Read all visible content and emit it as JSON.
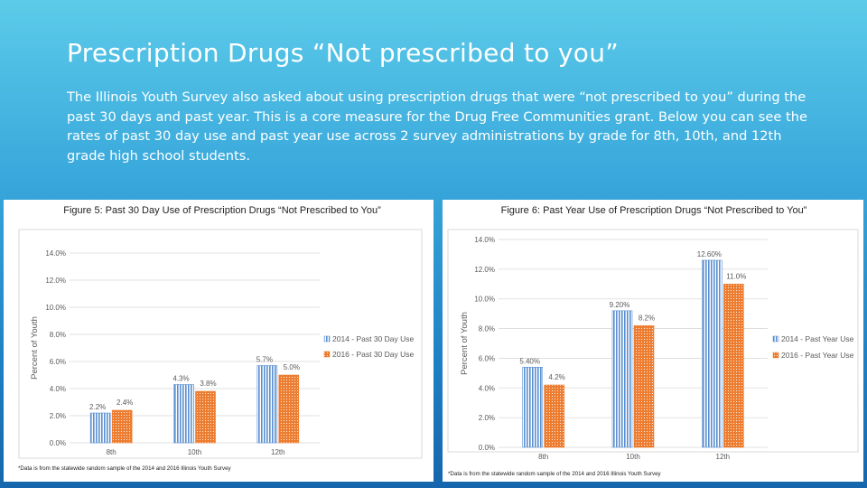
{
  "slide": {
    "title": "Prescription Drugs “Not prescribed to you”",
    "body": "The Illinois Youth Survey also asked about using prescription drugs that were “not prescribed to you” during the past 30 days and past year. This is a core measure for the Drug Free Communities grant. Below you can see the rates of past 30 day use and past year use across 2 survey administrations by grade for 8th, 10th, and 12th grade high school students."
  },
  "colors": {
    "series_2014": "#5b8fd0",
    "series_2016": "#ed7d31"
  },
  "chart_data": [
    {
      "type": "bar",
      "title": "Figure 5: Past 30 Day Use of Prescription Drugs “Not Prescribed to You”",
      "xlabel": "",
      "ylabel": "Percent of Youth",
      "ylim": [
        0,
        14
      ],
      "yticks": [
        "0.0%",
        "2.0%",
        "4.0%",
        "6.0%",
        "8.0%",
        "10.0%",
        "12.0%",
        "14.0%"
      ],
      "categories": [
        "8th",
        "10th",
        "12th"
      ],
      "series": [
        {
          "name": "2014 - Past 30 Day Use",
          "values": [
            2.2,
            4.3,
            5.7
          ],
          "labels": [
            "2.2%",
            "4.3%",
            "5.7%"
          ]
        },
        {
          "name": "2016 - Past 30 Day Use",
          "values": [
            2.4,
            3.8,
            5.0
          ],
          "labels": [
            "2.4%",
            "3.8%",
            "5.0%"
          ]
        }
      ],
      "legend": "right",
      "note": "*Data is from the statewide random sample of the 2014 and 2016 Illinois Youth Survey"
    },
    {
      "type": "bar",
      "title": "Figure 6: Past Year Use of Prescription Drugs “Not Prescribed to You”",
      "xlabel": "",
      "ylabel": "Percent of Youth",
      "ylim": [
        0,
        14
      ],
      "yticks": [
        "0.0%",
        "2.0%",
        "4.0%",
        "6.0%",
        "8.0%",
        "10.0%",
        "12.0%",
        "14.0%"
      ],
      "categories": [
        "8th",
        "10th",
        "12th"
      ],
      "series": [
        {
          "name": "2014 - Past Year Use",
          "values": [
            5.4,
            9.2,
            12.6
          ],
          "labels": [
            "5.40%",
            "9.20%",
            "12.60%"
          ]
        },
        {
          "name": "2016 - Past Year Use",
          "values": [
            4.2,
            8.2,
            11.0
          ],
          "labels": [
            "4.2%",
            "8.2%",
            "11.0%"
          ]
        }
      ],
      "legend": "right",
      "note": "*Data is from the statewide random sample of the 2014 and 2016 Illinois Youth Survey"
    }
  ]
}
